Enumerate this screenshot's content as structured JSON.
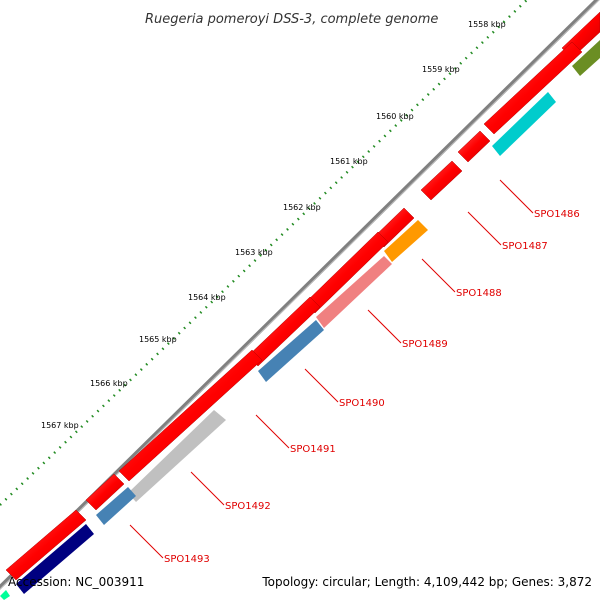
{
  "title": "Ruegeria pomeroyi DSS-3, complete genome",
  "footer": {
    "accession": "Accession: NC_003911",
    "topology": "Topology: circular; Length: 4,109,442 bp; Genes: 3,872"
  },
  "scale_labels": [
    "1558 kbp",
    "1559 kbp",
    "1560 kbp",
    "1561 kbp",
    "1562 kbp",
    "1563 kbp",
    "1564 kbp",
    "1565 kbp",
    "1566 kbp",
    "1567 kbp"
  ],
  "gene_labels": [
    "SPO1486",
    "SPO1487",
    "SPO1488",
    "SPO1489",
    "SPO1490",
    "SPO1491",
    "SPO1492",
    "SPO1493"
  ],
  "colors": {
    "forward_cds": "#ff0000",
    "backbone": "#888888",
    "tick": "#228b22",
    "label": "#e00000",
    "olive": "#6b8e23",
    "cyan": "#00cccc",
    "orange": "#ff9900",
    "pink": "#f08080",
    "steelblue": "#4682b4",
    "silver": "#c0c0c0",
    "navy": "#000080",
    "teal": "#00ff99"
  }
}
